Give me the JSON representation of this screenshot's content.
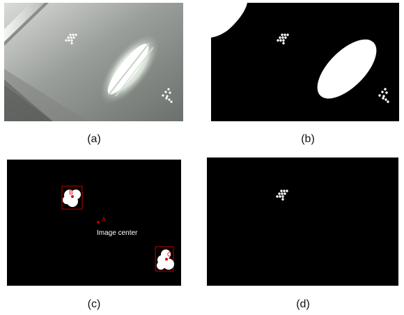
{
  "captions": {
    "a": "(a)",
    "b": "(b)",
    "c": "(c)",
    "d": "(d)"
  },
  "panel_c": {
    "point_a_label": "A",
    "point_b_label": "B",
    "point_c_label": "C",
    "image_center_label": "Image center"
  },
  "colors": {
    "background": "#ffffff",
    "panel_black": "#000000",
    "marker_red": "#e00000"
  }
}
